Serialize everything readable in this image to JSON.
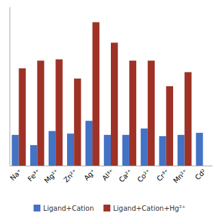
{
  "chart_data": {
    "type": "bar",
    "categories": [
      "Na⁺",
      "Fe³⁺",
      "Mg²⁺",
      "Zn²⁺",
      "Ag⁺",
      "Al³⁺",
      "Ca²⁺",
      "Co²⁺",
      "Cr³⁺",
      "Mn²⁺",
      "Cd²"
    ],
    "series": [
      {
        "name": "Ligand+Cation",
        "color": "#4472C4",
        "values": [
          120,
          80,
          135,
          125,
          175,
          120,
          120,
          145,
          115,
          120,
          128
        ]
      },
      {
        "name": "Ligand+Cation+Hg²⁺",
        "color": "#9E3226",
        "values": [
          380,
          410,
          415,
          340,
          560,
          480,
          410,
          410,
          310,
          365,
          0
        ]
      }
    ],
    "ylim": [
      0,
      620
    ],
    "tick_labels": "x",
    "grid": false,
    "legend": "bottom"
  }
}
